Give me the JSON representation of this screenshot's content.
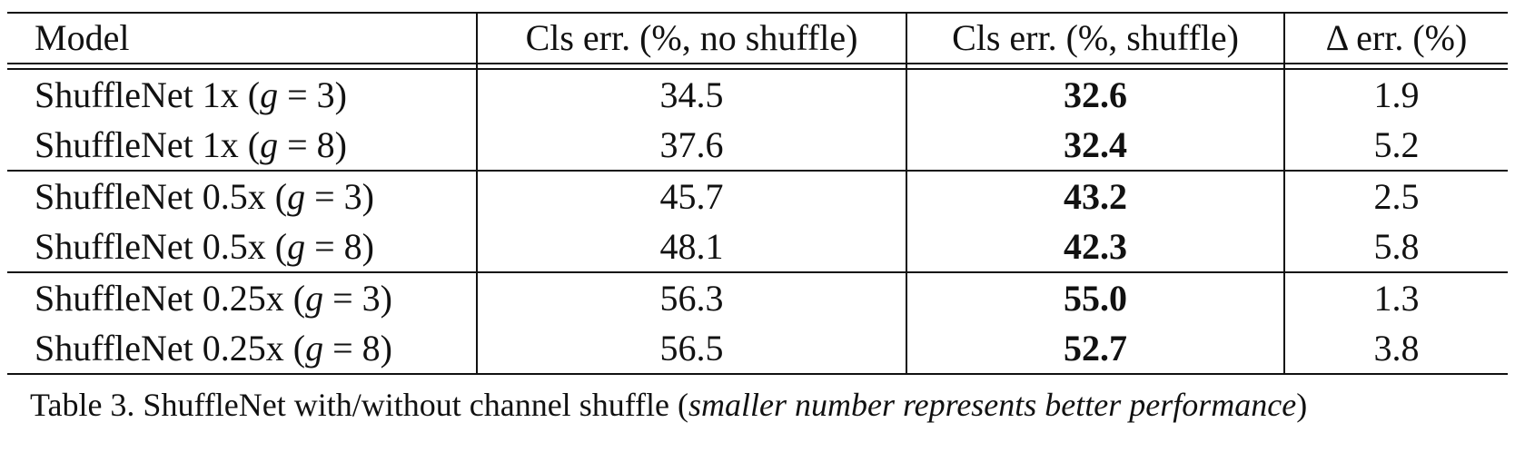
{
  "table": {
    "headers": [
      "Model",
      "Cls err. (%, no shuffle)",
      "Cls err. (%, shuffle)",
      "Δ err. (%)"
    ],
    "rows": [
      {
        "model_prefix": "ShuffleNet 1x (",
        "g_var": "g",
        "g_eq": " = 3",
        "model_suffix": ")",
        "no_shuffle": "34.5",
        "shuffle": "32.6",
        "delta": "1.9"
      },
      {
        "model_prefix": "ShuffleNet 1x (",
        "g_var": "g",
        "g_eq": " = 8",
        "model_suffix": ")",
        "no_shuffle": "37.6",
        "shuffle": "32.4",
        "delta": "5.2"
      },
      {
        "model_prefix": "ShuffleNet 0.5x (",
        "g_var": "g",
        "g_eq": " = 3",
        "model_suffix": ")",
        "no_shuffle": "45.7",
        "shuffle": "43.2",
        "delta": "2.5"
      },
      {
        "model_prefix": "ShuffleNet 0.5x (",
        "g_var": "g",
        "g_eq": " = 8",
        "model_suffix": ")",
        "no_shuffle": "48.1",
        "shuffle": "42.3",
        "delta": "5.8"
      },
      {
        "model_prefix": "ShuffleNet 0.25x (",
        "g_var": "g",
        "g_eq": " = 3",
        "model_suffix": ")",
        "no_shuffle": "56.3",
        "shuffle": "55.0",
        "delta": "1.3"
      },
      {
        "model_prefix": "ShuffleNet 0.25x (",
        "g_var": "g",
        "g_eq": " = 8",
        "model_suffix": ")",
        "no_shuffle": "56.5",
        "shuffle": "52.7",
        "delta": "3.8"
      }
    ]
  },
  "caption": {
    "label": "Table 3. ShuffleNet with/without channel shuffle (",
    "italic": "smaller number represents better performance",
    "end": ")"
  }
}
